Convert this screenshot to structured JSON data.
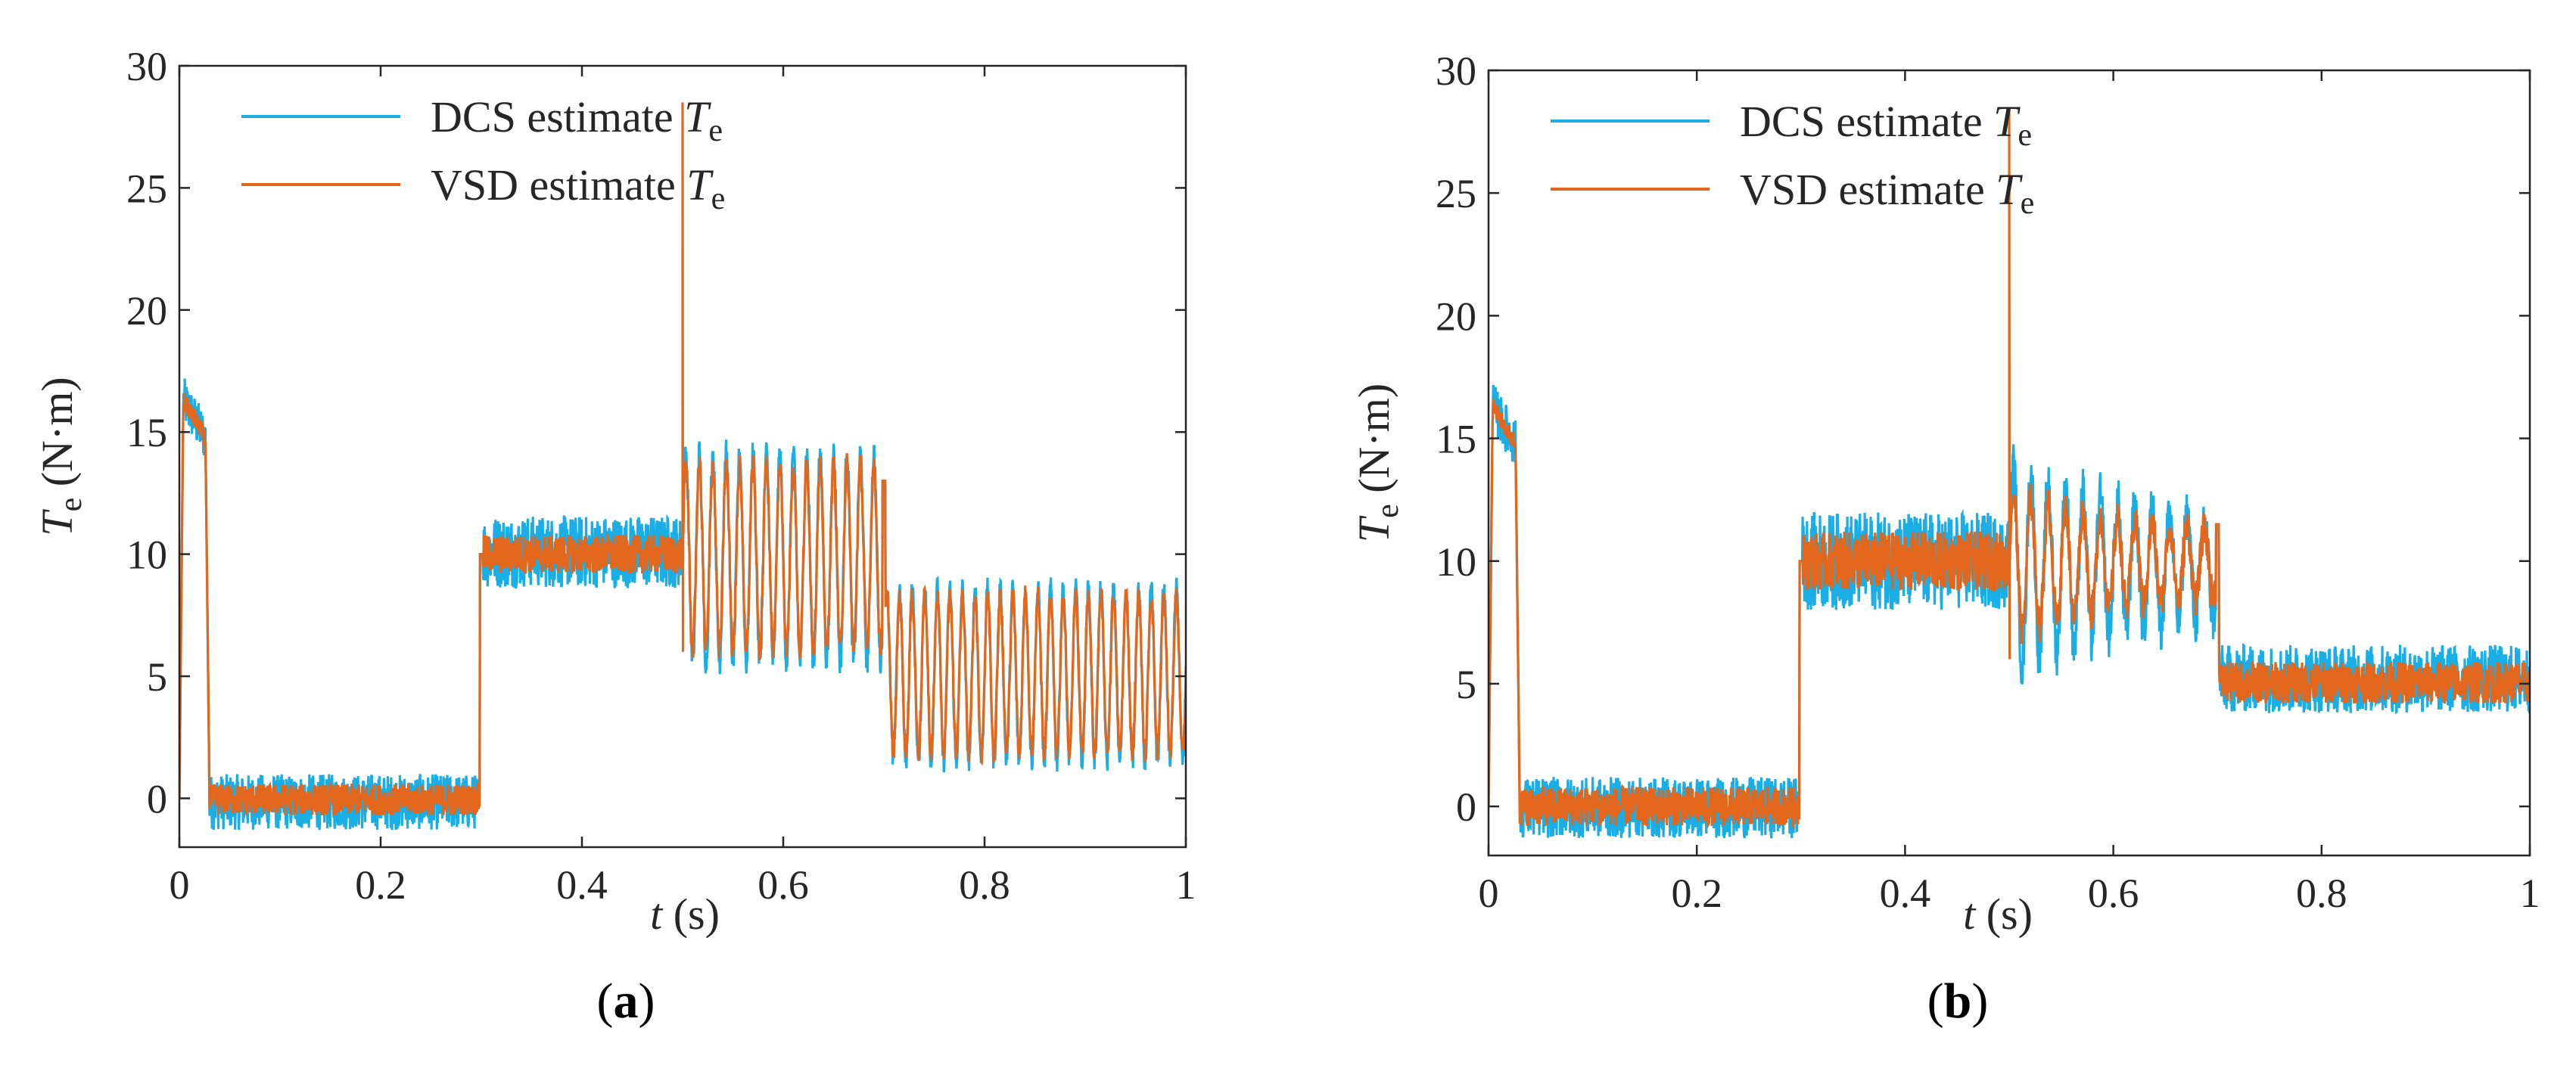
{
  "colors": {
    "dcs": "#1aaee6",
    "vsd": "#e2661c",
    "axis": "#262626"
  },
  "chart_data": [
    {
      "panel": "a",
      "panel_label": "(a)",
      "type": "line",
      "xlabel_var": "t",
      "xlabel_unit": "(s)",
      "ylabel_var": "T",
      "ylabel_sub": "e",
      "ylabel_unit": "(N·m)",
      "xlim": [
        0,
        1
      ],
      "ylim": [
        -2,
        30
      ],
      "xticks": [
        0,
        0.2,
        0.4,
        0.6,
        0.8,
        1
      ],
      "xtick_labels": [
        "0",
        "0.2",
        "0.4",
        "0.6",
        "0.8",
        "1"
      ],
      "yticks": [
        0,
        5,
        10,
        15,
        20,
        25,
        30
      ],
      "ytick_labels": [
        "0",
        "5",
        "10",
        "15",
        "20",
        "25",
        "30"
      ],
      "grid": false,
      "legend_position": "top-left",
      "series": [
        {
          "name": "DCS estimate",
          "name_var": "T",
          "name_sub": "e",
          "color": "#1aaee6"
        },
        {
          "name": "VSD estimate",
          "name_var": "T",
          "name_sub": "e",
          "color": "#e2661c"
        }
      ],
      "segments": [
        {
          "t_start": 0.0,
          "t_end": 0.03,
          "mean": 14.5,
          "note": "startup transient peak ~16.5"
        },
        {
          "t_start": 0.03,
          "t_end": 0.3,
          "mean": 0,
          "dcs_range": [
            -1.3,
            1.0
          ],
          "vsd_range": [
            -0.7,
            0.6
          ]
        },
        {
          "t_start": 0.3,
          "t_end": 0.5,
          "mean": 10,
          "dcs_range": [
            8.6,
            11.6
          ],
          "vsd_range": [
            9.2,
            10.8
          ]
        },
        {
          "t_start": 0.5,
          "t_end": 0.7,
          "mean": 10,
          "dcs_range": [
            5.2,
            14.5
          ],
          "vsd_range": [
            5.8,
            14.0
          ],
          "oscillation": "large"
        },
        {
          "t_start": 0.7,
          "t_end": 1.0,
          "mean": 5,
          "dcs_range": [
            1.2,
            8.9
          ],
          "vsd_range": [
            1.6,
            8.6
          ],
          "oscillation": "large"
        }
      ],
      "spikes": [
        {
          "t": 0.5,
          "value": 28.5,
          "series": "VSD estimate"
        }
      ]
    },
    {
      "panel": "b",
      "panel_label": "(b)",
      "type": "line",
      "xlabel_var": "t",
      "xlabel_unit": "(s)",
      "ylabel_var": "T",
      "ylabel_sub": "e",
      "ylabel_unit": "(N·m)",
      "xlim": [
        0,
        1
      ],
      "ylim": [
        -2,
        30
      ],
      "xticks": [
        0,
        0.2,
        0.4,
        0.6,
        0.8,
        1
      ],
      "xtick_labels": [
        "0",
        "0.2",
        "0.4",
        "0.6",
        "0.8",
        "1"
      ],
      "yticks": [
        0,
        5,
        10,
        15,
        20,
        25,
        30
      ],
      "ytick_labels": [
        "0",
        "5",
        "10",
        "15",
        "20",
        "25",
        "30"
      ],
      "grid": false,
      "legend_position": "top-left",
      "series": [
        {
          "name": "DCS estimate",
          "name_var": "T",
          "name_sub": "e",
          "color": "#1aaee6"
        },
        {
          "name": "VSD estimate",
          "name_var": "T",
          "name_sub": "e",
          "color": "#e2661c"
        }
      ],
      "segments": [
        {
          "t_start": 0.0,
          "t_end": 0.03,
          "mean": 14.5,
          "note": "startup transient peak ~16.5"
        },
        {
          "t_start": 0.03,
          "t_end": 0.3,
          "mean": 0,
          "dcs_range": [
            -1.3,
            1.2
          ],
          "vsd_range": [
            -0.8,
            0.8
          ]
        },
        {
          "t_start": 0.3,
          "t_end": 0.5,
          "mean": 10,
          "dcs_range": [
            8.0,
            12.0
          ],
          "vsd_range": [
            8.8,
            11.2
          ]
        },
        {
          "t_start": 0.5,
          "t_end": 0.7,
          "mean": 10,
          "dcs_range": [
            5.5,
            14.0
          ],
          "vsd_range": [
            7.0,
            12.8
          ],
          "oscillation": "decaying"
        },
        {
          "t_start": 0.7,
          "t_end": 1.0,
          "mean": 5,
          "dcs_range": [
            3.8,
            6.6
          ],
          "vsd_range": [
            4.2,
            5.9
          ]
        }
      ],
      "spikes": [
        {
          "t": 0.5,
          "value": 28.5,
          "series": "VSD estimate"
        }
      ]
    }
  ]
}
